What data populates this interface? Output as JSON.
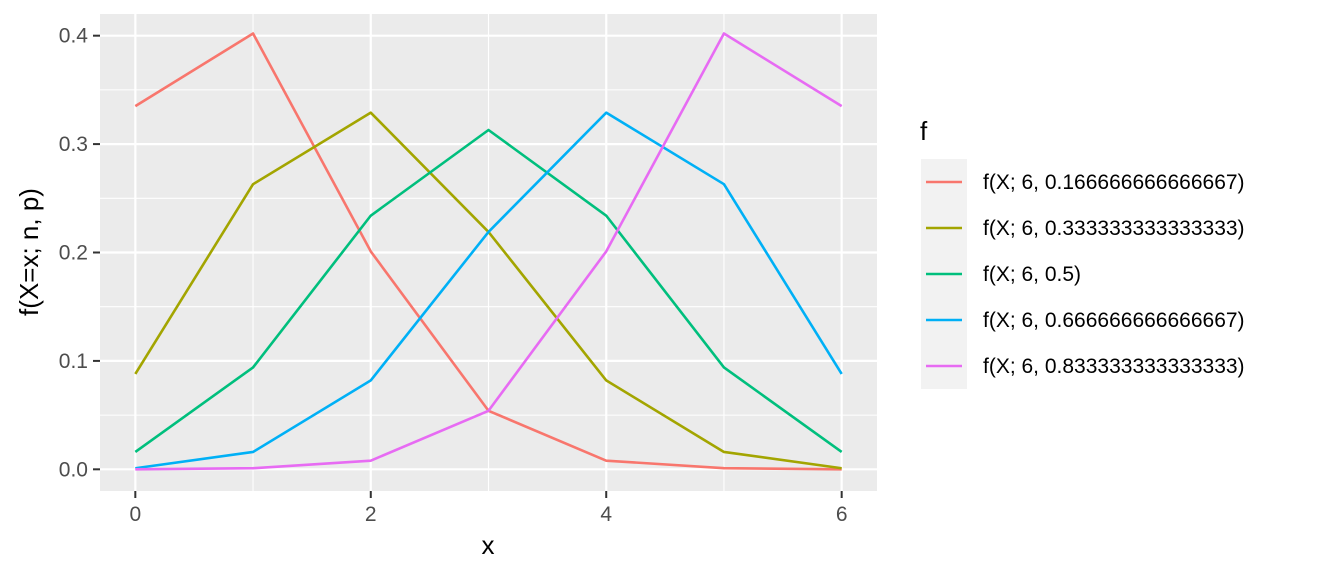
{
  "chart_data": {
    "type": "line",
    "title": "",
    "xlabel": "x",
    "ylabel": "f(X=x; n, p)",
    "xlim": [
      -0.3,
      6.3
    ],
    "ylim": [
      -0.02,
      0.42
    ],
    "x_ticks": [
      0,
      2,
      4,
      6
    ],
    "x_tick_labels": [
      "0",
      "2",
      "4",
      "6"
    ],
    "y_ticks": [
      0.0,
      0.1,
      0.2,
      0.3,
      0.4
    ],
    "y_tick_labels": [
      "0.0",
      "0.1",
      "0.2",
      "0.3",
      "0.4"
    ],
    "grid": true,
    "legend_title": "f",
    "legend_position": "right",
    "x": [
      0,
      1,
      2,
      3,
      4,
      5,
      6
    ],
    "series": [
      {
        "name": "f(X; 6, 0.166666666666667)",
        "color": "#F8766D",
        "values": [
          0.335,
          0.402,
          0.201,
          0.054,
          0.008,
          0.001,
          0.0
        ]
      },
      {
        "name": "f(X; 6, 0.333333333333333)",
        "color": "#A3A500",
        "values": [
          0.088,
          0.263,
          0.329,
          0.219,
          0.082,
          0.016,
          0.001
        ]
      },
      {
        "name": "f(X; 6, 0.5)",
        "color": "#00BF7D",
        "values": [
          0.016,
          0.094,
          0.234,
          0.313,
          0.234,
          0.094,
          0.016
        ]
      },
      {
        "name": "f(X; 6, 0.666666666666667)",
        "color": "#00B0F6",
        "values": [
          0.001,
          0.016,
          0.082,
          0.219,
          0.329,
          0.263,
          0.088
        ]
      },
      {
        "name": "f(X; 6, 0.833333333333333)",
        "color": "#E76BF3",
        "values": [
          0.0,
          0.001,
          0.008,
          0.054,
          0.201,
          0.402,
          0.335
        ]
      }
    ]
  }
}
